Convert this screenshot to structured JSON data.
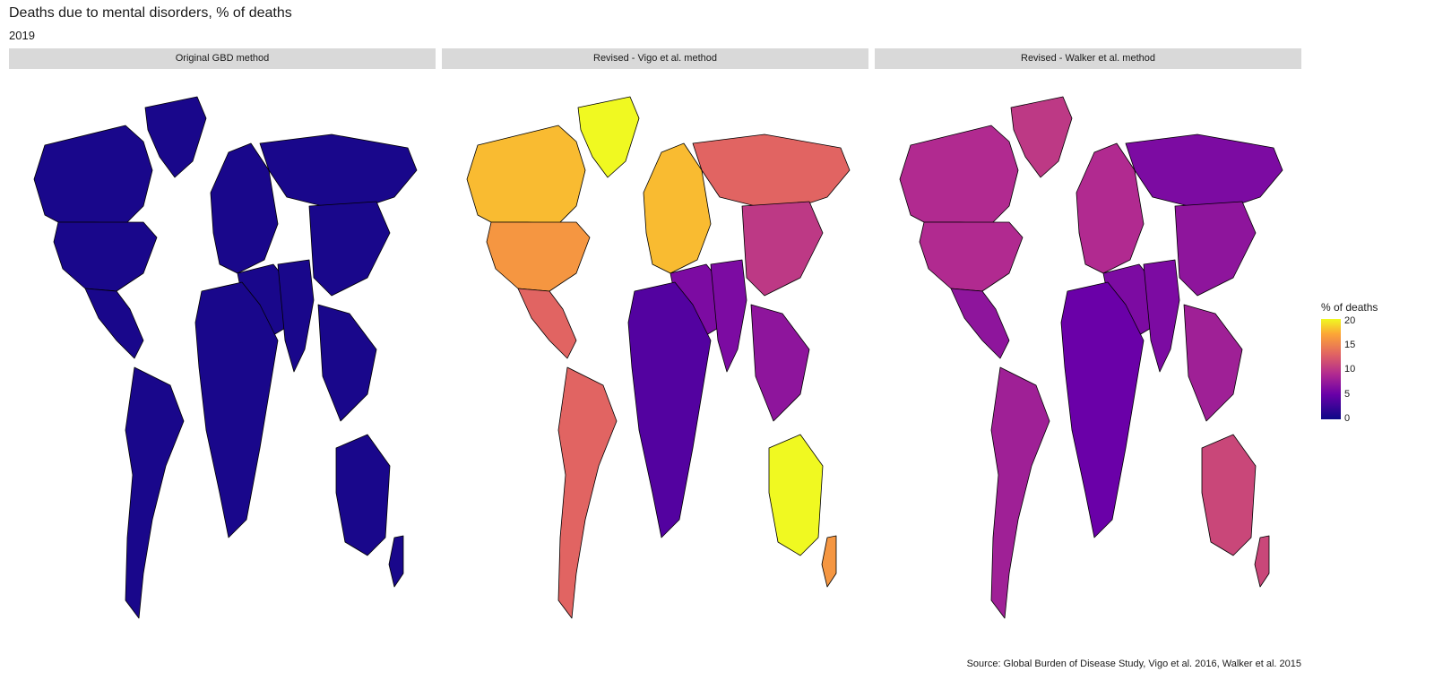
{
  "title": "Deaths due to mental disorders, % of deaths",
  "subtitle": "2019",
  "facets": [
    {
      "label": "Original GBD method"
    },
    {
      "label": "Revised - Vigo et al. method"
    },
    {
      "label": "Revised - Walker et al. method"
    }
  ],
  "legend": {
    "title": "% of deaths",
    "ticks": [
      "20",
      "15",
      "10",
      "5",
      "0"
    ],
    "scale": "plasma",
    "min": 0,
    "max": 20,
    "colors": [
      "#0d0887",
      "#6a00a8",
      "#b12a90",
      "#e16462",
      "#fca636",
      "#f0f921"
    ]
  },
  "source": "Source: Global Burden of Disease Study, Vigo et al. 2016, Walker et al. 2015",
  "regions": [
    "Greenland",
    "Canada",
    "USA",
    "Latin America",
    "South America",
    "Europe",
    "Russia",
    "Middle East",
    "Africa",
    "South Asia",
    "East Asia",
    "Southeast Asia",
    "Australia",
    "New Zealand"
  ],
  "region_values": {
    "Original GBD method": [
      0.5,
      0.5,
      0.5,
      0.5,
      0.5,
      0.5,
      0.5,
      0.5,
      0.5,
      0.5,
      0.5,
      0.5,
      0.5,
      0.5
    ],
    "Revised - Vigo et al. method": [
      20,
      17,
      15,
      12,
      12,
      17,
      12,
      5,
      3,
      5,
      9,
      6,
      20,
      15
    ],
    "Revised - Walker et al. method": [
      9,
      8,
      8,
      6,
      7,
      8,
      5,
      5,
      4,
      5,
      6,
      7,
      10,
      10
    ]
  }
}
